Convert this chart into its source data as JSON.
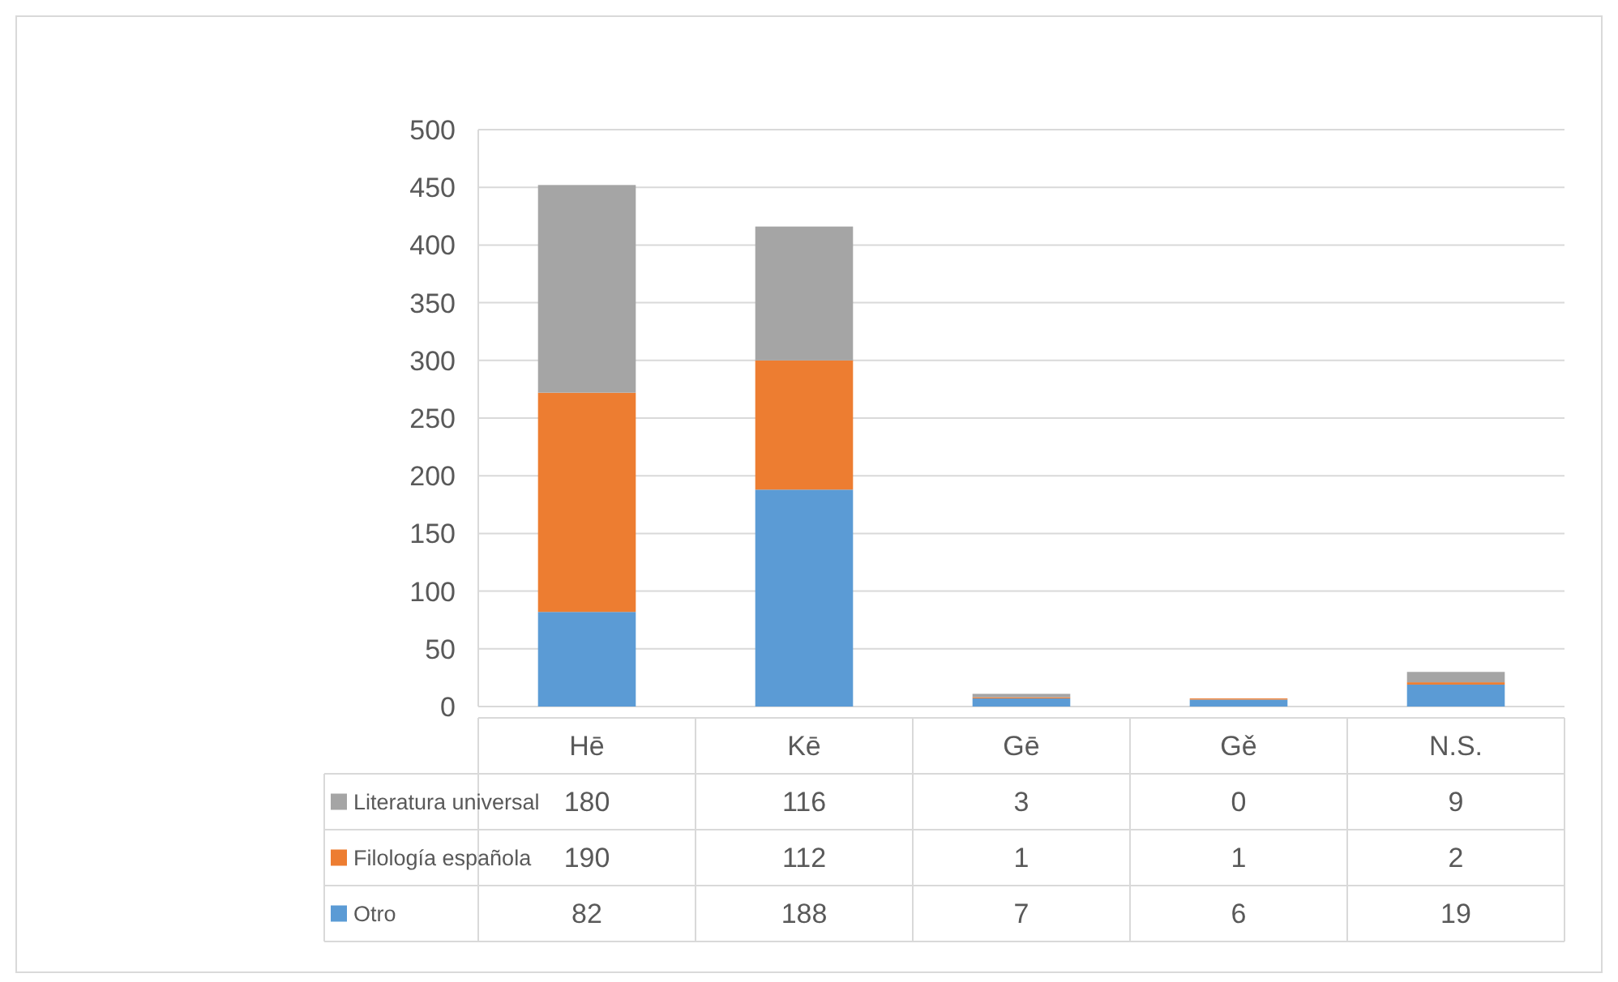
{
  "chart_data": {
    "type": "bar",
    "stacked": true,
    "categories": [
      "Hē",
      "Kē",
      "Gē",
      "Gě",
      "N.S."
    ],
    "series": [
      {
        "name": "Otro",
        "color": "#5b9bd5",
        "values": [
          82,
          188,
          7,
          6,
          19
        ]
      },
      {
        "name": "Filología española",
        "color": "#ed7d31",
        "values": [
          190,
          112,
          1,
          1,
          2
        ]
      },
      {
        "name": "Literatura universal",
        "color": "#a5a5a5",
        "values": [
          180,
          116,
          3,
          0,
          9
        ]
      }
    ],
    "ylim": [
      0,
      500
    ],
    "yticks": [
      0,
      50,
      100,
      150,
      200,
      250,
      300,
      350,
      400,
      450,
      500
    ],
    "grid": "y",
    "legend": "bottom",
    "data_labels": true
  }
}
